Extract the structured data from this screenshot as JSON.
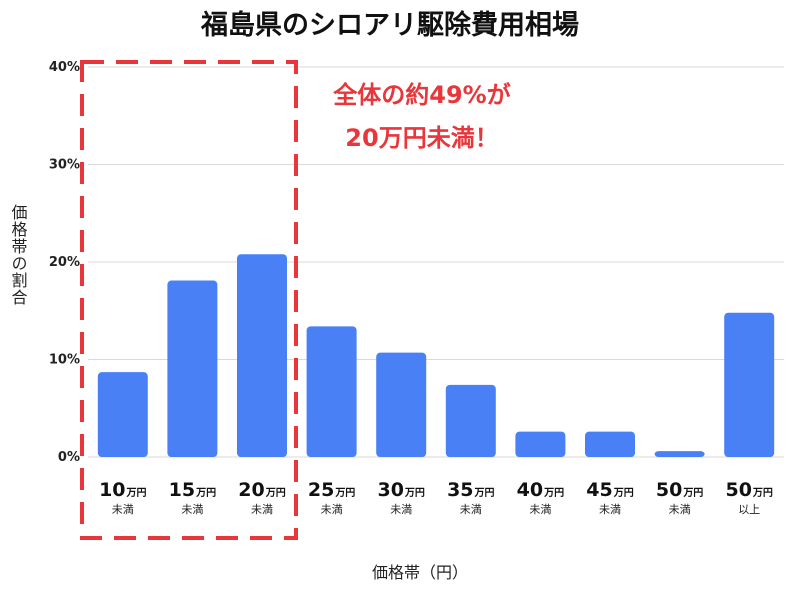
{
  "chart_data": {
    "type": "bar",
    "title": "福島県のシロアリ駆除費用相場",
    "xlabel": "価格帯（円）",
    "ylabel": "価格帯の割合",
    "ylim": [
      0,
      40
    ],
    "yticks": [
      "0%",
      "10%",
      "20%",
      "30%",
      "40%"
    ],
    "grid": true,
    "categories": [
      {
        "main": "10",
        "unit": "万円",
        "sub": "未満"
      },
      {
        "main": "15",
        "unit": "万円",
        "sub": "未満"
      },
      {
        "main": "20",
        "unit": "万円",
        "sub": "未満"
      },
      {
        "main": "25",
        "unit": "万円",
        "sub": "未満"
      },
      {
        "main": "30",
        "unit": "万円",
        "sub": "未満"
      },
      {
        "main": "35",
        "unit": "万円",
        "sub": "未満"
      },
      {
        "main": "40",
        "unit": "万円",
        "sub": "未満"
      },
      {
        "main": "45",
        "unit": "万円",
        "sub": "未満"
      },
      {
        "main": "50",
        "unit": "万円",
        "sub": "未満"
      },
      {
        "main": "50",
        "unit": "万円",
        "sub": "以上"
      }
    ],
    "values": [
      8.7,
      18.1,
      20.8,
      13.4,
      10.7,
      7.4,
      2.6,
      2.6,
      0.6,
      14.8
    ],
    "highlight": {
      "categories": [
        "10万円未満",
        "15万円未満",
        "20万円未満"
      ],
      "line1": "全体の約49%が",
      "line2": "20万円未満！"
    },
    "colors": {
      "bar": "#4a80f5",
      "highlight": "#e8363a",
      "grid": "#d9d9d9"
    }
  }
}
